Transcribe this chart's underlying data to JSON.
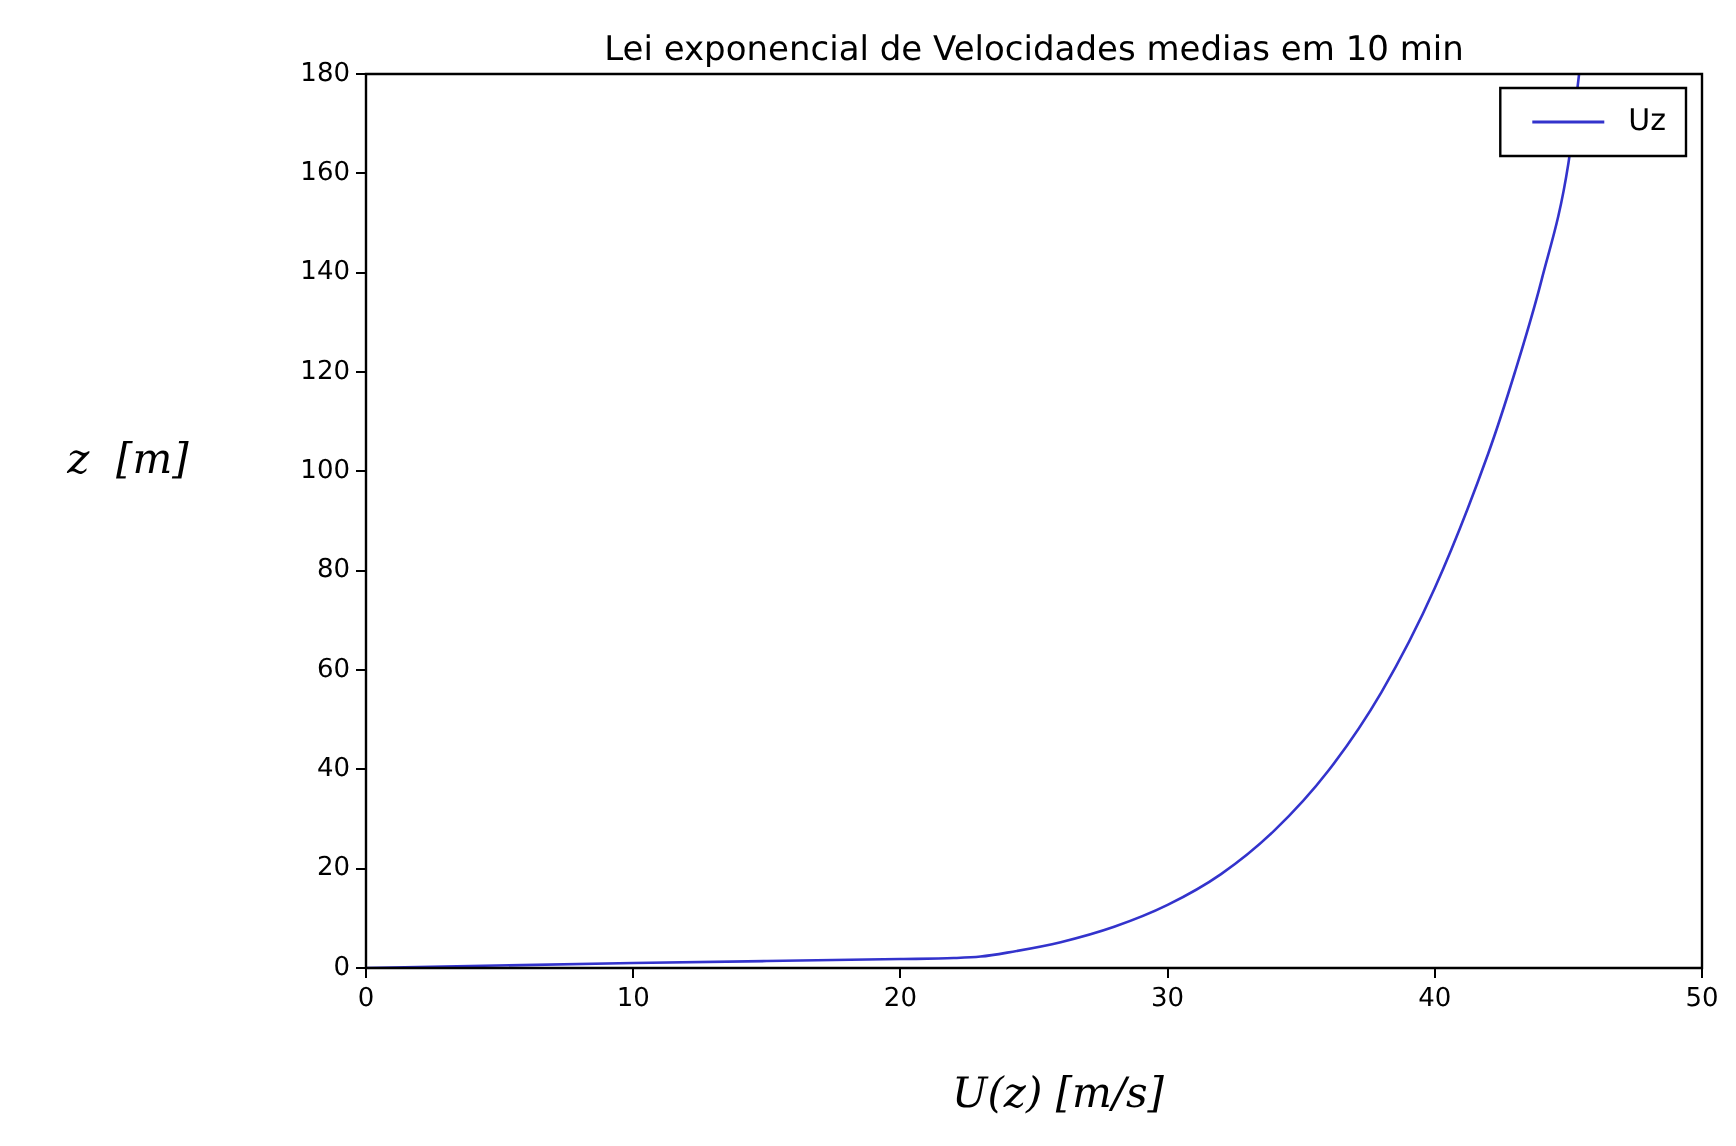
{
  "chart_data": {
    "type": "line",
    "title": "Lei exponencial de Velocidades medias em 10 min",
    "xlabel": "U(z) [m/s]",
    "ylabel": "z  [m]",
    "series": [
      {
        "name": "Uz",
        "color": "#3333cc",
        "x": [
          0,
          10,
          20,
          22,
          23,
          24,
          26,
          28,
          30,
          32,
          34,
          36,
          38,
          40,
          42,
          43,
          44,
          45,
          45.4
        ],
        "values": [
          0,
          1,
          1.8,
          2,
          2.3,
          3.1,
          5.2,
          8.3,
          12.7,
          18.9,
          27.7,
          39.6,
          55.5,
          76.5,
          103.6,
          120,
          138.6,
          162,
          180
        ]
      }
    ],
    "xlim": [
      0,
      50
    ],
    "xticks": [
      0,
      10,
      20,
      30,
      40,
      50
    ],
    "ylim": [
      0,
      180
    ],
    "yticks": [
      0,
      20,
      40,
      60,
      80,
      100,
      120,
      140,
      160,
      180
    ],
    "grid": false,
    "legend": "top right",
    "marker": "none",
    "line_style": "solid"
  }
}
